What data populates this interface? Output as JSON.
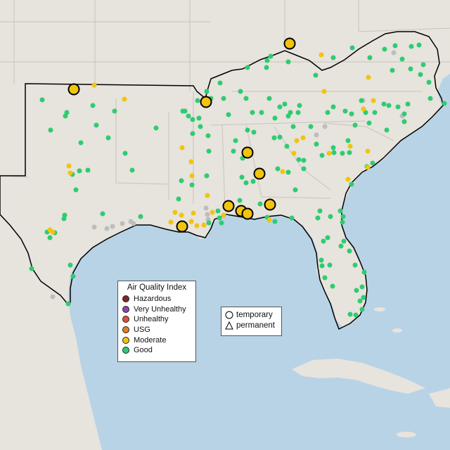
{
  "legend": {
    "title": "Air Quality Index",
    "categories": [
      {
        "label": "Hazardous",
        "color": "#7e2a1f"
      },
      {
        "label": "Very Unhealthy",
        "color": "#8e44ad"
      },
      {
        "label": "Unhealthy",
        "color": "#e74c3c"
      },
      {
        "label": "USG",
        "color": "#e67e22"
      },
      {
        "label": "Moderate",
        "color": "#f1c40f"
      },
      {
        "label": "Good",
        "color": "#2ecc71"
      }
    ]
  },
  "shape_legend": {
    "temporary": "temporary",
    "permanent": "permanent"
  },
  "colors": {
    "water": "#b9d3e6",
    "land": "#e8e4df",
    "region_outline": "#000000",
    "missing": "#bdbdbd"
  },
  "markers": {
    "good": [
      [
        60,
        142
      ],
      [
        132,
        150
      ],
      [
        163,
        158
      ],
      [
        95,
        160
      ],
      [
        93,
        165
      ],
      [
        137,
        178
      ],
      [
        72,
        185
      ],
      [
        115,
        203
      ],
      [
        154,
        196
      ],
      [
        222,
        182
      ],
      [
        178,
        218
      ],
      [
        188,
        242
      ],
      [
        125,
        242
      ],
      [
        108,
        270
      ],
      [
        103,
        248
      ],
      [
        113,
        243
      ],
      [
        146,
        304
      ],
      [
        92,
        306
      ],
      [
        91,
        311
      ],
      [
        67,
        330
      ],
      [
        71,
        338
      ],
      [
        78,
        331
      ],
      [
        45,
        382
      ],
      [
        100,
        377
      ],
      [
        104,
        393
      ],
      [
        97,
        432
      ],
      [
        294,
        130
      ],
      [
        313,
        118
      ],
      [
        342,
        130
      ],
      [
        352,
        96
      ],
      [
        379,
        96
      ],
      [
        380,
        86
      ],
      [
        385,
        80
      ],
      [
        410,
        88
      ],
      [
        449,
        107
      ],
      [
        474,
        82
      ],
      [
        501,
        68
      ],
      [
        526,
        82
      ],
      [
        547,
        70
      ],
      [
        562,
        65
      ],
      [
        585,
        66
      ],
      [
        596,
        64
      ],
      [
        572,
        84
      ],
      [
        558,
        100
      ],
      [
        584,
        98
      ],
      [
        598,
        106
      ],
      [
        602,
        92
      ],
      [
        610,
        117
      ],
      [
        281,
        143
      ],
      [
        263,
        158
      ],
      [
        260,
        158
      ],
      [
        268,
        165
      ],
      [
        283,
        168
      ],
      [
        300,
        140
      ],
      [
        318,
        140
      ],
      [
        325,
        163
      ],
      [
        350,
        140
      ],
      [
        359,
        160
      ],
      [
        352,
        185
      ],
      [
        361,
        188
      ],
      [
        335,
        200
      ],
      [
        383,
        140
      ],
      [
        372,
        160
      ],
      [
        391,
        168
      ],
      [
        398,
        152
      ],
      [
        405,
        148
      ],
      [
        413,
        160
      ],
      [
        410,
        165
      ],
      [
        426,
        150
      ],
      [
        424,
        160
      ],
      [
        417,
        180
      ],
      [
        398,
        195
      ],
      [
        408,
        208
      ],
      [
        442,
        180
      ],
      [
        466,
        160
      ],
      [
        474,
        152
      ],
      [
        491,
        158
      ],
      [
        500,
        162
      ],
      [
        514,
        143
      ],
      [
        520,
        160
      ],
      [
        533,
        160
      ],
      [
        546,
        148
      ],
      [
        553,
        150
      ],
      [
        566,
        152
      ],
      [
        575,
        162
      ],
      [
        580,
        148
      ],
      [
        612,
        140
      ],
      [
        632,
        147
      ],
      [
        575,
        173
      ],
      [
        550,
        185
      ],
      [
        525,
        175
      ],
      [
        505,
        178
      ],
      [
        495,
        200
      ],
      [
        474,
        210
      ],
      [
        450,
        205
      ],
      [
        390,
        196
      ],
      [
        345,
        225
      ],
      [
        332,
        215
      ],
      [
        296,
        193
      ],
      [
        297,
        215
      ],
      [
        274,
        170
      ],
      [
        285,
        180
      ],
      [
        274,
        190
      ],
      [
        294,
        250
      ],
      [
        254,
        283
      ],
      [
        258,
        257
      ],
      [
        273,
        263
      ],
      [
        200,
        308
      ],
      [
        432,
        240
      ],
      [
        432,
        228
      ],
      [
        458,
        221
      ],
      [
        475,
        217
      ],
      [
        487,
        218
      ],
      [
        497,
        217
      ],
      [
        522,
        237
      ],
      [
        530,
        232
      ],
      [
        500,
        262
      ],
      [
        484,
        300
      ],
      [
        488,
        308
      ],
      [
        487,
        316
      ],
      [
        470,
        308
      ],
      [
        460,
        343
      ],
      [
        466,
        338
      ],
      [
        489,
        343
      ],
      [
        485,
        350
      ],
      [
        457,
        370
      ],
      [
        458,
        378
      ],
      [
        469,
        377
      ],
      [
        462,
        395
      ],
      [
        473,
        407
      ],
      [
        497,
        357
      ],
      [
        505,
        377
      ],
      [
        518,
        387
      ],
      [
        515,
        408
      ],
      [
        507,
        413
      ],
      [
        517,
        423
      ],
      [
        512,
        428
      ],
      [
        515,
        440
      ],
      [
        506,
        448
      ],
      [
        498,
        447
      ],
      [
        455,
        300
      ],
      [
        452,
        310
      ],
      [
        420,
        270
      ],
      [
        415,
        310
      ],
      [
        380,
        309
      ],
      [
        391,
        315
      ],
      [
        410,
        245
      ],
      [
        395,
        240
      ],
      [
        360,
        258
      ],
      [
        350,
        260
      ],
      [
        344,
        305
      ],
      [
        344,
        252
      ],
      [
        341,
        285
      ],
      [
        312,
        310
      ],
      [
        310,
        300
      ],
      [
        297,
        317
      ],
      [
        315,
        317
      ],
      [
        370,
        290
      ],
      [
        425,
        227
      ]
    ],
    "moderate": [
      [
        134,
        121
      ],
      [
        177,
        141
      ],
      [
        98,
        236
      ],
      [
        100,
        246
      ],
      [
        71,
        327
      ],
      [
        75,
        330
      ],
      [
        273,
        250
      ],
      [
        295,
        278
      ],
      [
        259,
        210
      ],
      [
        302,
        302
      ],
      [
        249,
        302
      ],
      [
        243,
        316
      ],
      [
        258,
        306
      ],
      [
        275,
        303
      ],
      [
        280,
        321
      ],
      [
        290,
        320
      ],
      [
        272,
        315
      ],
      [
        318,
        306
      ],
      [
        272,
        230
      ],
      [
        402,
        244
      ],
      [
        418,
        218
      ],
      [
        422,
        200
      ],
      [
        431,
        196
      ],
      [
        468,
        218
      ],
      [
        498,
        208
      ],
      [
        523,
        215
      ],
      [
        523,
        238
      ],
      [
        495,
        255
      ],
      [
        461,
        130
      ],
      [
        457,
        78
      ],
      [
        517,
        155
      ],
      [
        531,
        143
      ],
      [
        524,
        110
      ],
      [
        383,
        313
      ]
    ],
    "missing": [
      [
        134,
        323
      ],
      [
        152,
        325
      ],
      [
        160,
        322
      ],
      [
        174,
        318
      ],
      [
        186,
        315
      ],
      [
        190,
        318
      ],
      [
        293,
        296
      ],
      [
        295,
        305
      ],
      [
        296,
        312
      ],
      [
        560,
        75
      ],
      [
        572,
        165
      ],
      [
        516,
        143
      ],
      [
        462,
        180
      ],
      [
        450,
        192
      ],
      [
        75,
        422
      ]
    ],
    "temp_moderate": [
      [
        105,
        127
      ],
      [
        293,
        145
      ],
      [
        412,
        62
      ],
      [
        352,
        217
      ],
      [
        369,
        247
      ],
      [
        325,
        293
      ],
      [
        343,
        300
      ],
      [
        352,
        304
      ],
      [
        384,
        291
      ],
      [
        259,
        322
      ]
    ]
  }
}
